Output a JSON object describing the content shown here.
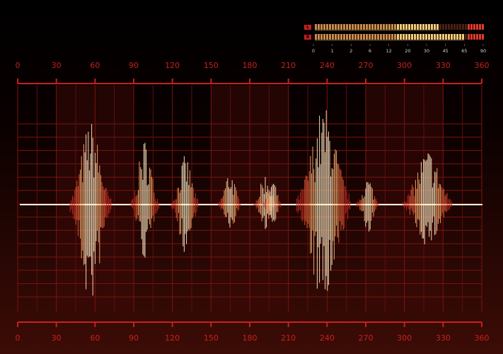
{
  "scale": {
    "ticks": [
      0,
      30,
      60,
      90,
      120,
      150,
      180,
      210,
      240,
      270,
      300,
      330,
      360
    ]
  },
  "meter": {
    "channels": [
      "L",
      "R"
    ],
    "ticks": [
      0,
      1,
      2,
      6,
      12,
      20,
      30,
      45,
      65,
      90
    ],
    "levels": [
      40,
      65
    ]
  }
}
